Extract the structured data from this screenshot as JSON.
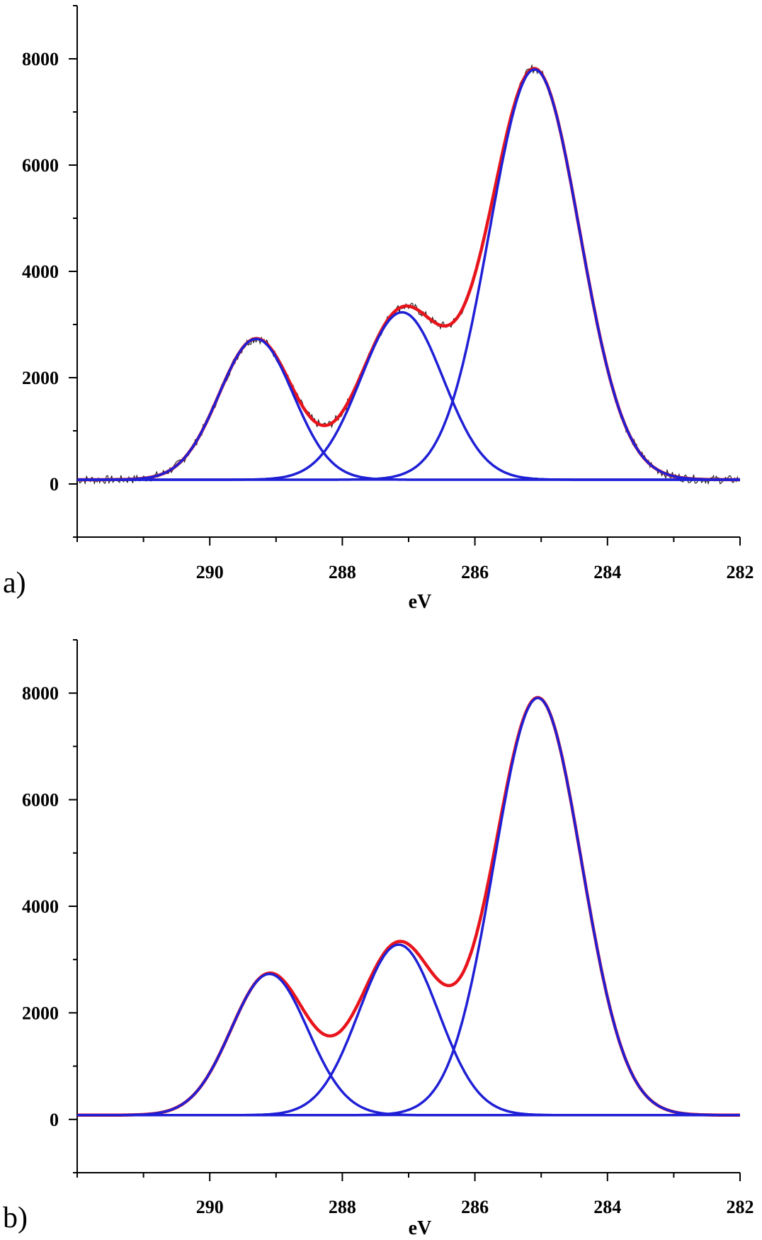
{
  "chart_data": [
    {
      "type": "line",
      "panel_label": "a)",
      "title": "",
      "xlabel": "eV",
      "ylabel": "",
      "xlim": [
        292,
        282
      ],
      "ylim": [
        -1000,
        9000
      ],
      "x_ticks": [
        290,
        288,
        286,
        284,
        282
      ],
      "x_tick_labels": [
        "290",
        "288",
        "286",
        "284",
        "282"
      ],
      "y_ticks": [
        0,
        2000,
        4000,
        6000,
        8000
      ],
      "y_tick_labels": [
        "0",
        "2000",
        "4000",
        "6000",
        "8000"
      ],
      "baseline": 80,
      "peaks": [
        {
          "center": 289.3,
          "amplitude": 2650,
          "width": 0.56
        },
        {
          "center": 287.1,
          "amplitude": 3150,
          "width": 0.62
        },
        {
          "center": 285.1,
          "amplitude": 7720,
          "width": 0.68
        }
      ],
      "series": [
        {
          "name": "Experimental",
          "color": "#222222",
          "role": "data"
        },
        {
          "name": "Envelope fit",
          "color": "#e8141c",
          "role": "envelope"
        },
        {
          "name": "Component 1",
          "color": "#1f1fd6",
          "role": "component",
          "peak": 0
        },
        {
          "name": "Component 2",
          "color": "#1f1fd6",
          "role": "component",
          "peak": 1
        },
        {
          "name": "Component 3",
          "color": "#1f1fd6",
          "role": "component",
          "peak": 2
        },
        {
          "name": "Baseline",
          "color": "#1f1fd6",
          "role": "baseline"
        }
      ]
    },
    {
      "type": "line",
      "panel_label": "b)",
      "title": "",
      "xlabel": "eV",
      "ylabel": "",
      "xlim": [
        292,
        282
      ],
      "ylim": [
        -1000,
        9000
      ],
      "x_ticks": [
        290,
        288,
        286,
        284,
        282
      ],
      "x_tick_labels": [
        "290",
        "288",
        "286",
        "284",
        "282"
      ],
      "y_ticks": [
        0,
        2000,
        4000,
        6000,
        8000
      ],
      "y_tick_labels": [
        "0",
        "2000",
        "4000",
        "6000",
        "8000"
      ],
      "baseline": 80,
      "peaks": [
        {
          "center": 289.1,
          "amplitude": 2650,
          "width": 0.58
        },
        {
          "center": 287.15,
          "amplitude": 3200,
          "width": 0.6
        },
        {
          "center": 285.05,
          "amplitude": 7830,
          "width": 0.66
        }
      ],
      "series": [
        {
          "name": "Envelope fit",
          "color": "#e8141c",
          "role": "envelope"
        },
        {
          "name": "Component 1",
          "color": "#1f1fd6",
          "role": "component",
          "peak": 0
        },
        {
          "name": "Component 2",
          "color": "#1f1fd6",
          "role": "component",
          "peak": 1
        },
        {
          "name": "Component 3",
          "color": "#1f1fd6",
          "role": "component",
          "peak": 2
        },
        {
          "name": "Baseline",
          "color": "#1f1fd6",
          "role": "baseline"
        }
      ]
    }
  ]
}
